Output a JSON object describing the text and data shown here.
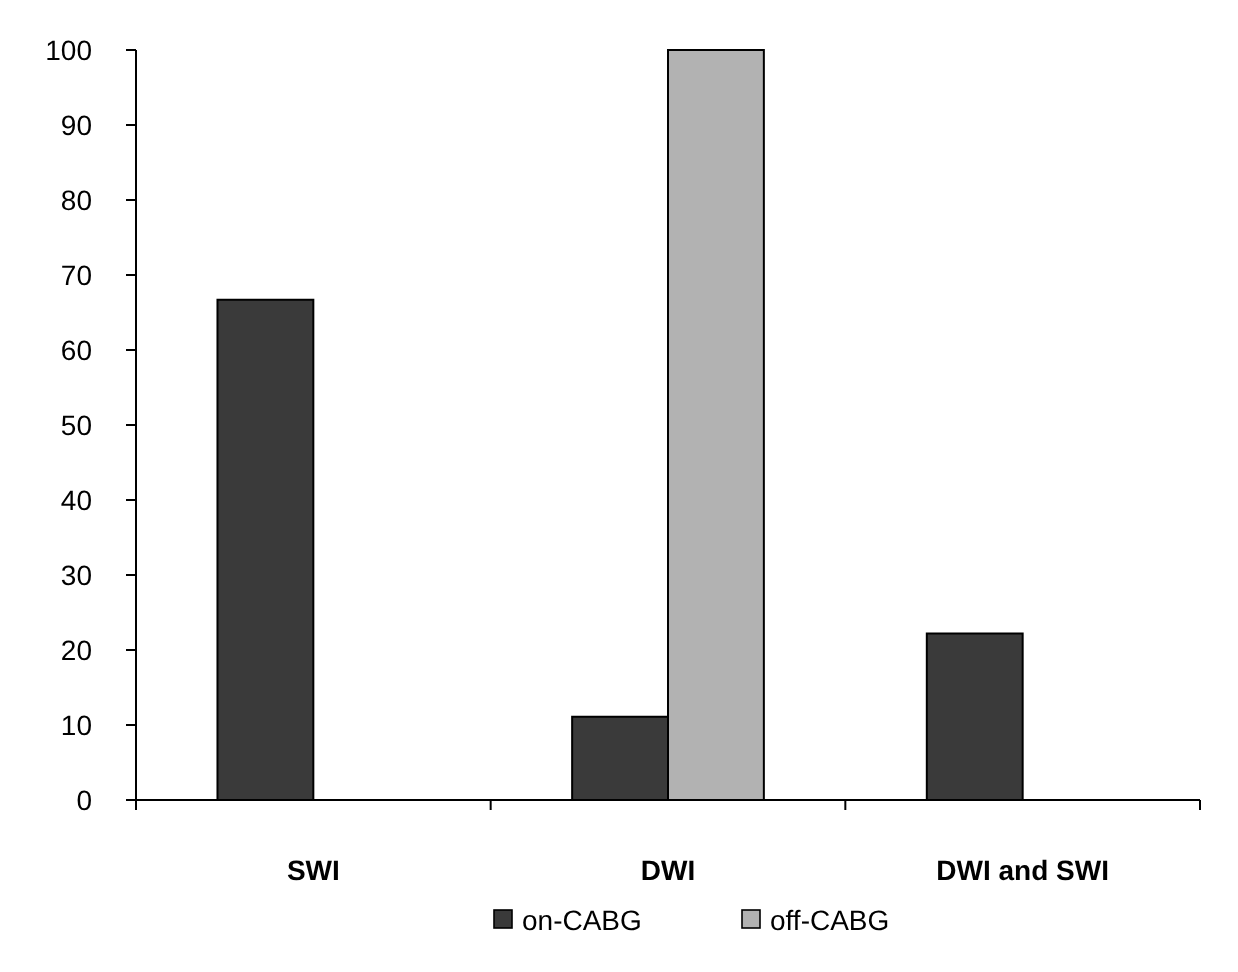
{
  "chart_data": {
    "type": "bar",
    "categories": [
      "SWI",
      "DWI",
      "DWI and SWI"
    ],
    "series": [
      {
        "name": "on-CABG",
        "color": "#3a3a3a",
        "values": [
          66.7,
          11.1,
          22.2
        ]
      },
      {
        "name": "off-CABG",
        "color": "#b2b2b2",
        "values": [
          0,
          100,
          0
        ]
      }
    ],
    "ylim": [
      0,
      100
    ],
    "yticks": [
      0,
      10,
      20,
      30,
      40,
      50,
      60,
      70,
      80,
      90,
      100
    ],
    "grid": false,
    "legend": "bottom"
  }
}
